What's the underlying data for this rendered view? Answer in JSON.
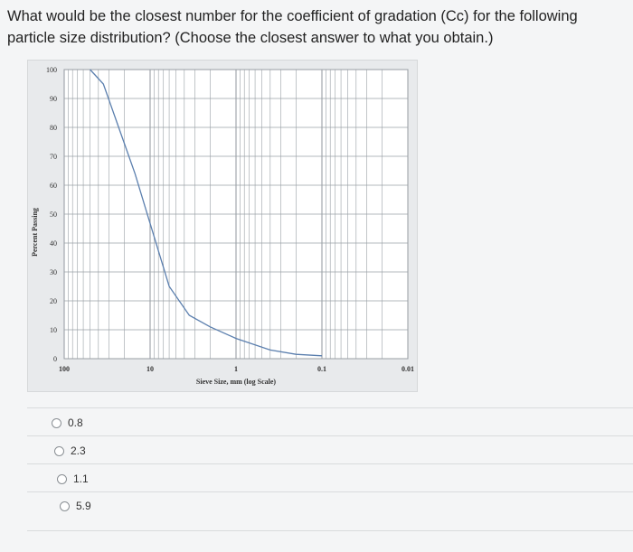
{
  "question": "What would be the closest number for the coefficient of gradation (Cc) for the following particle size distribution? (Choose the closest answer to what you obtain.)",
  "chart_data": {
    "type": "line",
    "xlabel": "Sieve Size, mm (log Scale)",
    "ylabel": "Percent Passing",
    "x_scale": "log",
    "x_reversed": true,
    "xlim": [
      100,
      0.01
    ],
    "ylim": [
      0,
      100
    ],
    "x_ticks": [
      100,
      10,
      1,
      0.1,
      0.01
    ],
    "x_tick_labels": [
      "100",
      "10",
      "1",
      "0.1",
      "0.01"
    ],
    "y_ticks": [
      0,
      10,
      20,
      30,
      40,
      50,
      60,
      70,
      80,
      90,
      100
    ],
    "y_tick_labels": [
      "0",
      "10",
      "20",
      "30",
      "40",
      "50",
      "60",
      "70",
      "80",
      "90",
      "100"
    ],
    "grid": true,
    "series": [
      {
        "x": [
          50,
          35,
          15,
          6,
          3.5,
          2,
          1,
          0.4,
          0.2,
          0.1
        ],
        "y": [
          100,
          95,
          64,
          25,
          15,
          11,
          7,
          3,
          1.5,
          1
        ]
      }
    ]
  },
  "options": [
    {
      "label": "0.8"
    },
    {
      "label": "2.3"
    },
    {
      "label": "1.1"
    },
    {
      "label": "5.9"
    }
  ],
  "colors": {
    "curve": "#5b7fae",
    "grid": "#9aa0a6",
    "plot_bg": "#ffffff",
    "frame_bg": "#e8eaec"
  }
}
